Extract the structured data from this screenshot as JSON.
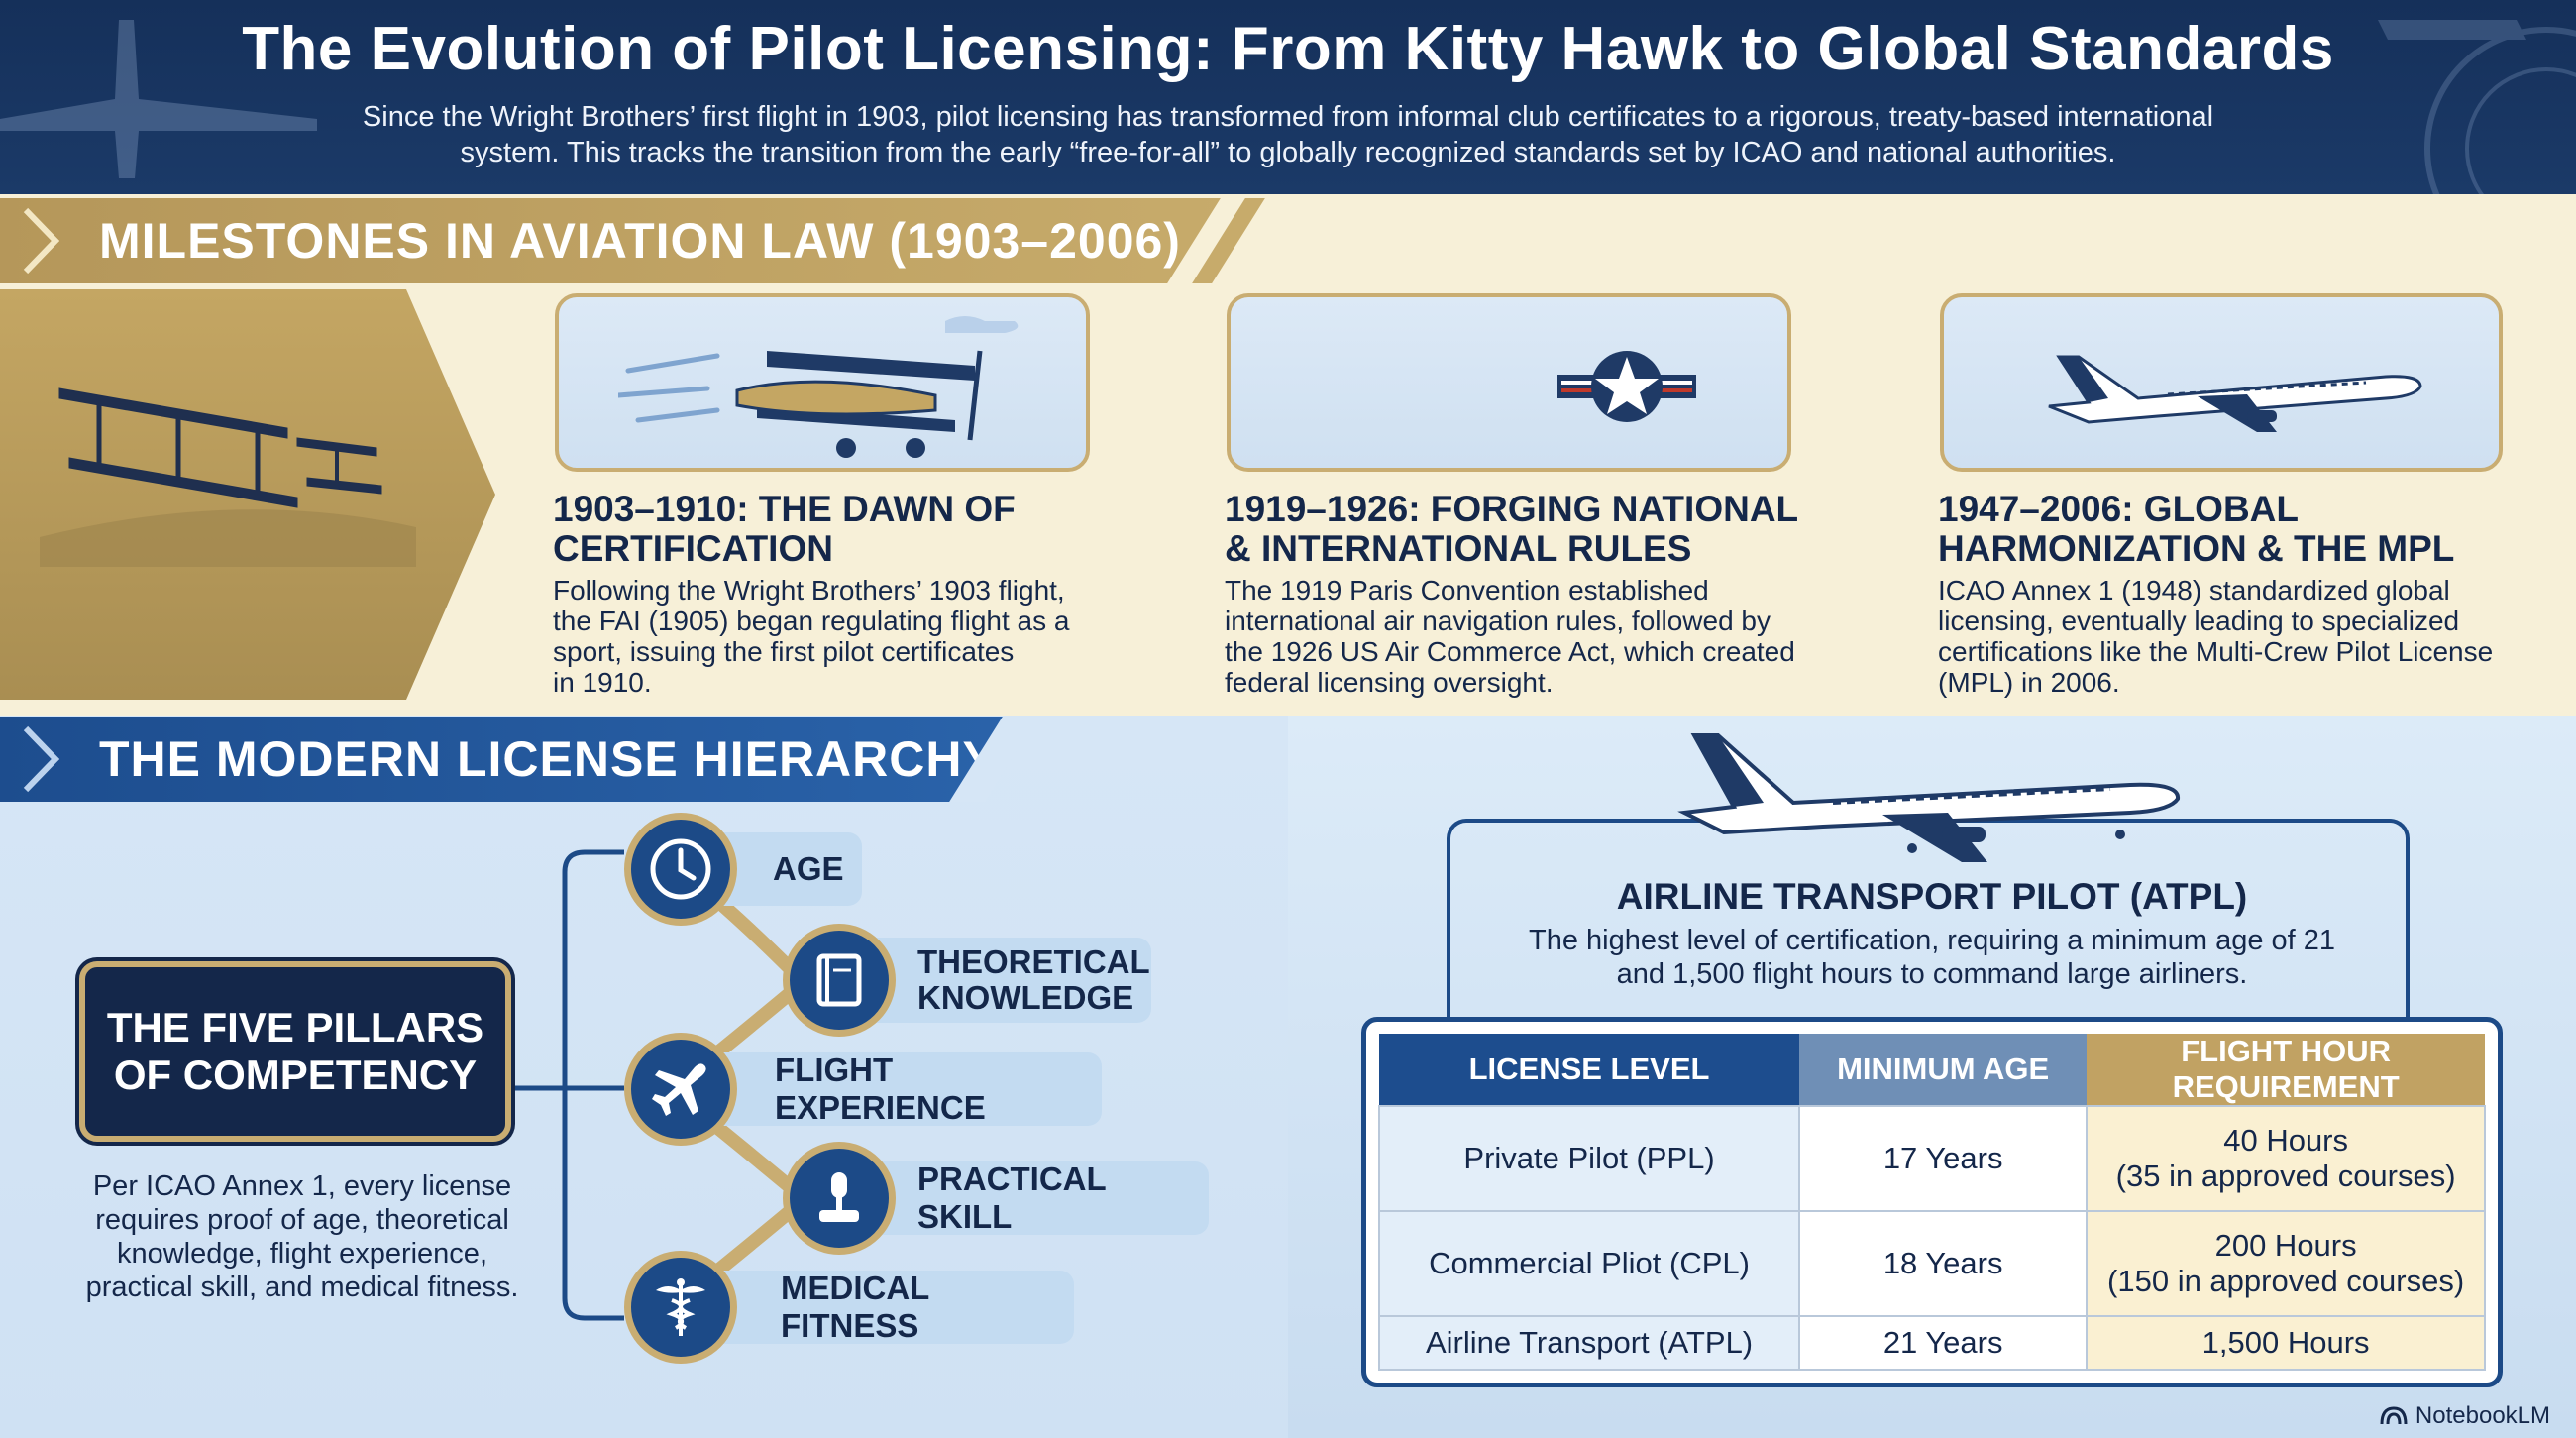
{
  "header": {
    "title": "The Evolution of Pilot Licensing: From Kitty Hawk to Global Standards",
    "subtitle_line1": "Since the Wright Brothers’ first flight in 1903, pilot licensing has transformed from informal club certificates to a rigorous, treaty-based international",
    "subtitle_line2": "system. This tracks the transition from the early “free-for-all” to globally recognized standards set by ICAO and national authorities."
  },
  "milestones": {
    "section_title": "MILESTONES IN AVIATION LAW (1903–2006)",
    "items": [
      {
        "heading_line1": "1903–1910: THE DAWN OF",
        "heading_line2": "CERTIFICATION",
        "body": [
          "Following the Wright Brothers’ 1903 flight,",
          "the FAI (1905) began regulating flight as a",
          "sport, issuing the first pilot certificates",
          "in 1910."
        ],
        "icon": "biplane-icon"
      },
      {
        "heading_line1": "1919–1926: FORGING NATIONAL",
        "heading_line2": "& INTERNATIONAL RULES",
        "body": [
          "The 1919 Paris Convention established",
          "international air navigation rules, followed by",
          "the 1926 US Air Commerce Act, which created",
          "federal licensing oversight."
        ],
        "icon": "star-roundel-icon"
      },
      {
        "heading_line1": "1947–2006: GLOBAL",
        "heading_line2": "HARMONIZATION & THE MPL",
        "body": [
          "ICAO Annex 1 (1948) standardized global",
          "licensing, eventually leading to specialized",
          "certifications like the Multi-Crew Pilot License",
          "(MPL) in 2006."
        ],
        "icon": "jetliner-icon"
      }
    ]
  },
  "hierarchy": {
    "section_title": "THE MODERN LICENSE HIERARCHY",
    "pillars_title_line1": "THE FIVE PILLARS",
    "pillars_title_line2": "OF COMPETENCY",
    "pillars_desc": [
      "Per ICAO Annex 1, every license",
      "requires proof of age, theoretical",
      "knowledge, flight experience,",
      "practical skill, and medical fitness."
    ],
    "pillars": [
      {
        "label": "AGE",
        "icon": "clock-icon"
      },
      {
        "label_line1": "THEORETICAL",
        "label_line2": "KNOWLEDGE",
        "icon": "book-icon"
      },
      {
        "label": "FLIGHT EXPERIENCE",
        "icon": "airplane-icon"
      },
      {
        "label": "PRACTICAL SKILL",
        "icon": "joystick-icon"
      },
      {
        "label": "MEDICAL FITNESS",
        "icon": "caduceus-icon"
      }
    ]
  },
  "atpl": {
    "title": "AIRLINE TRANSPORT PILOT (ATPL)",
    "desc_line1": "The highest level of certification, requiring a minimum age of 21",
    "desc_line2": "and 1,500 flight hours to command large airliners."
  },
  "license_table": {
    "headers": [
      "LICENSE LEVEL",
      "MINIMUM AGE",
      "FLIGHT HOUR REQUIREMENT"
    ],
    "rows": [
      {
        "level": "Private Pilot (PPL)",
        "age": "17 Years",
        "hours_line1": "40 Hours",
        "hours_line2": "(35 in approved courses)"
      },
      {
        "level": "Commercial Pliot (CPL)",
        "age": "18 Years",
        "hours_line1": "200 Hours",
        "hours_line2": "(150 in approved courses)"
      },
      {
        "level": "Airline Transport (ATPL)",
        "age": "21 Years",
        "hours_line1": "1,500 Hours",
        "hours_line2": ""
      }
    ]
  },
  "brand": "NotebookLM",
  "colors": {
    "navy": "#14274a",
    "blue": "#1d4d8e",
    "gold": "#c9ad72",
    "cream": "#f7f0d8",
    "light_blue": "#d6e6f6"
  }
}
